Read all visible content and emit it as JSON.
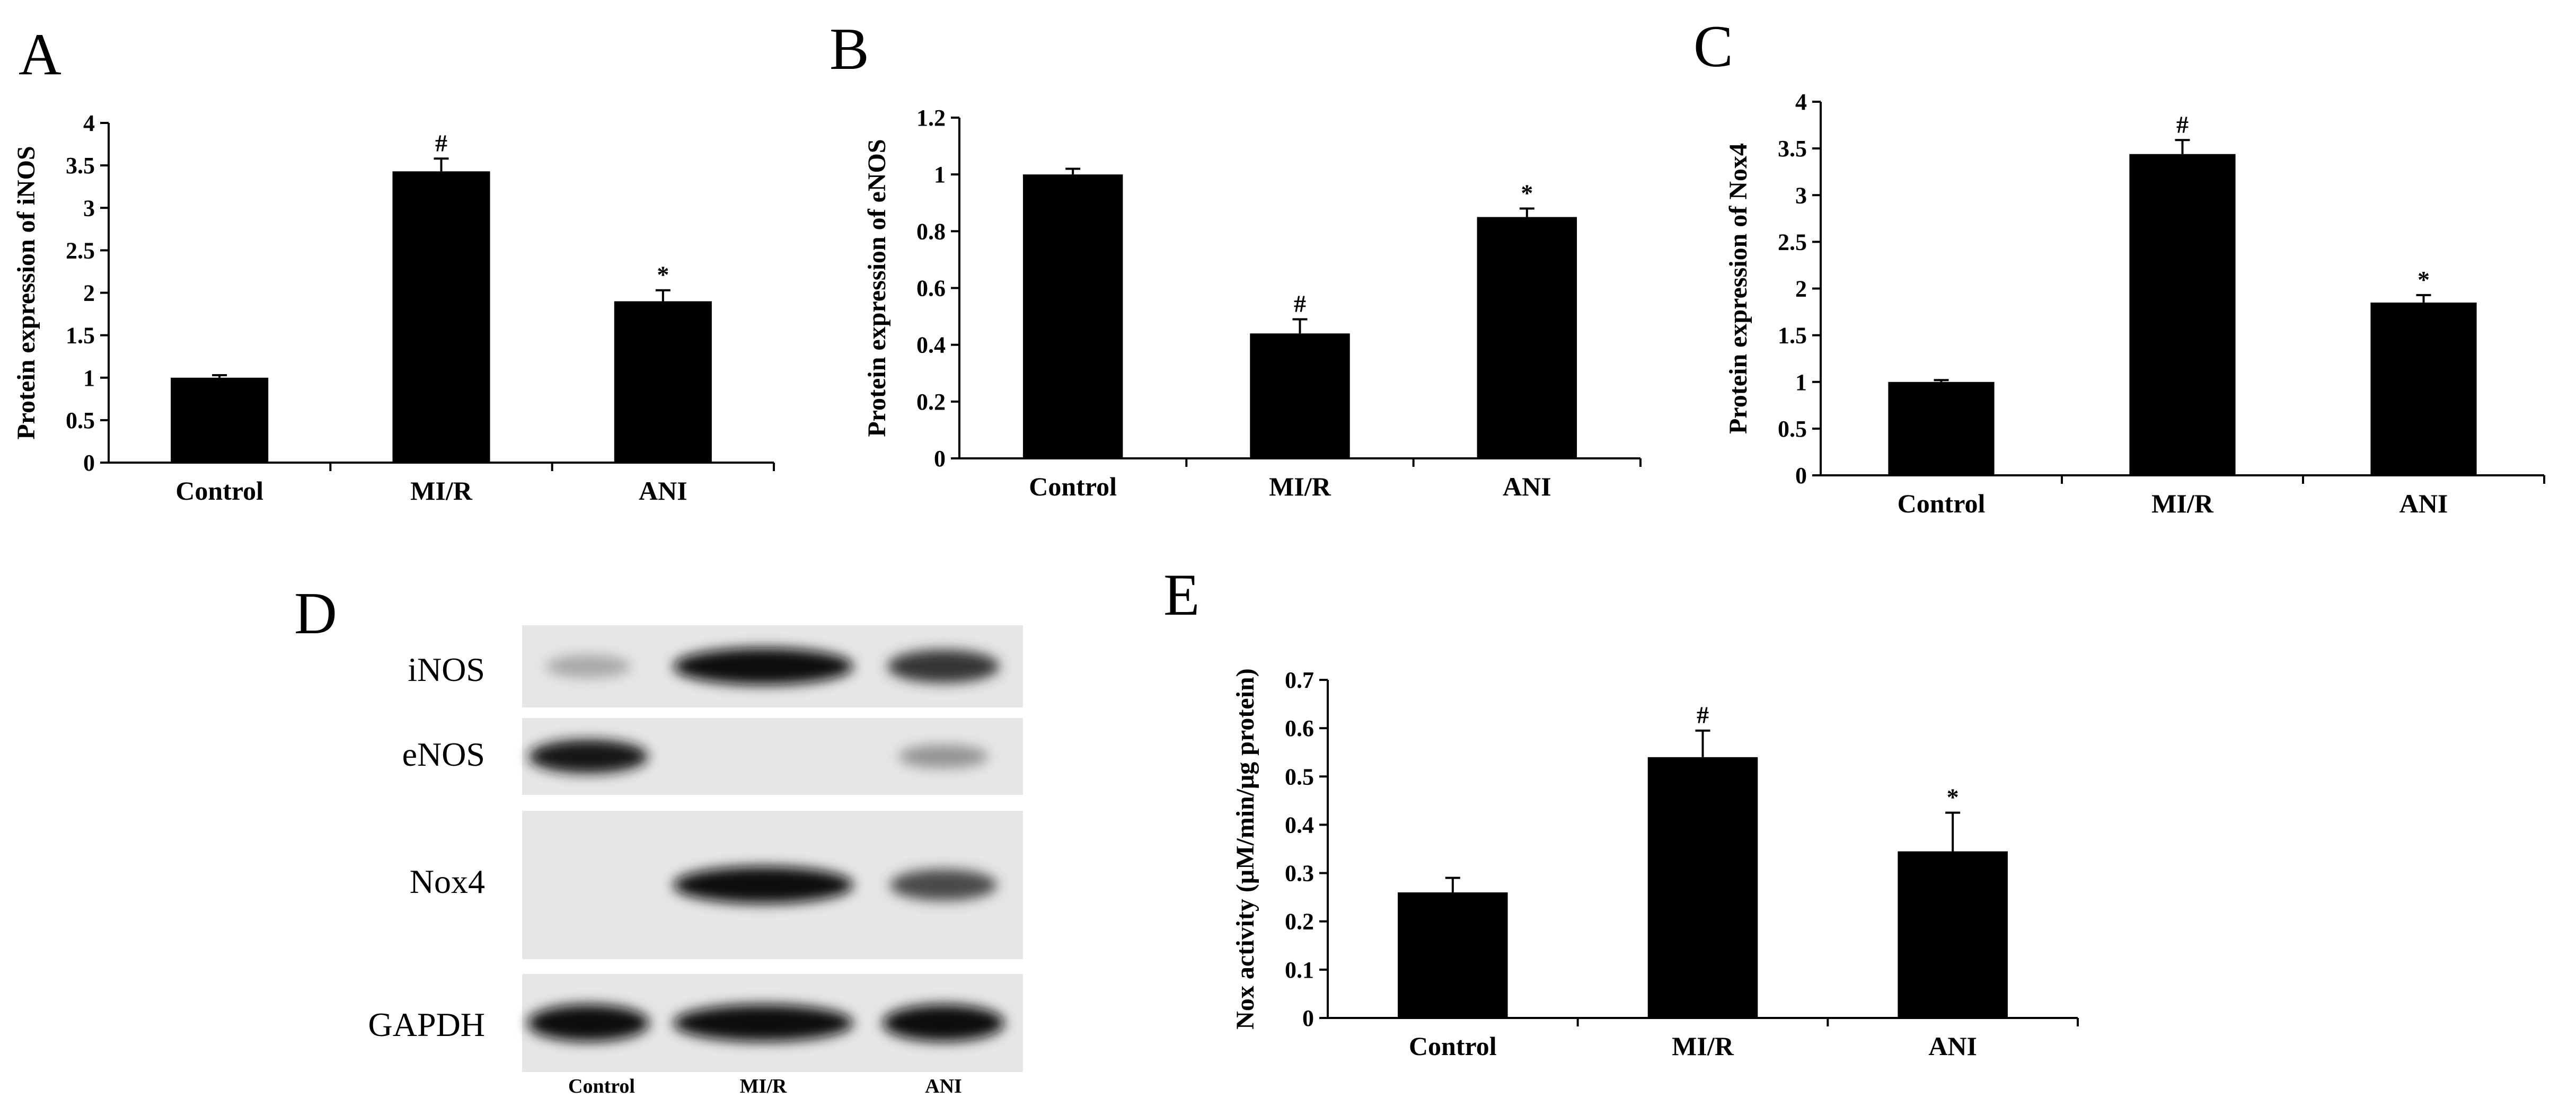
{
  "panels": {
    "A": "A",
    "B": "B",
    "C": "C",
    "D": "D",
    "E": "E"
  },
  "chart_data": [
    {
      "id": "A",
      "type": "bar",
      "categories": [
        "Control",
        "MI/R",
        "ANI"
      ],
      "values": [
        1.0,
        3.43,
        1.9
      ],
      "errors": [
        0.03,
        0.15,
        0.13
      ],
      "markers": [
        "",
        "#",
        "*"
      ],
      "ylabel": "Protein expression of iNOS",
      "ylim": [
        0,
        4
      ],
      "yticks": [
        "0",
        "0.5",
        "1",
        "1.5",
        "2",
        "2.5",
        "3",
        "3.5",
        "4"
      ],
      "grid": false
    },
    {
      "id": "B",
      "type": "bar",
      "categories": [
        "Control",
        "MI/R",
        "ANI"
      ],
      "values": [
        1.0,
        0.44,
        0.85
      ],
      "errors": [
        0.02,
        0.05,
        0.03
      ],
      "markers": [
        "",
        "#",
        "*"
      ],
      "ylabel": "Protein expression of eNOS",
      "ylim": [
        0,
        1.2
      ],
      "yticks": [
        "0",
        "0.2",
        "0.4",
        "0.6",
        "0.8",
        "1",
        "1.2"
      ],
      "grid": false
    },
    {
      "id": "C",
      "type": "bar",
      "categories": [
        "Control",
        "MI/R",
        "ANI"
      ],
      "values": [
        1.0,
        3.44,
        1.85
      ],
      "errors": [
        0.02,
        0.15,
        0.08
      ],
      "markers": [
        "",
        "#",
        "*"
      ],
      "ylabel": "Protein expression of Nox4",
      "ylim": [
        0,
        4
      ],
      "yticks": [
        "0",
        "0.5",
        "1",
        "1.5",
        "2",
        "2.5",
        "3",
        "3.5",
        "4"
      ],
      "grid": false
    },
    {
      "id": "E",
      "type": "bar",
      "categories": [
        "Control",
        "MI/R",
        "ANI"
      ],
      "values": [
        0.26,
        0.54,
        0.345
      ],
      "errors": [
        0.03,
        0.055,
        0.08
      ],
      "markers": [
        "",
        "#",
        "*"
      ],
      "ylabel": "Nox activity (μM/min/μg protein)",
      "ylim": [
        0,
        0.7
      ],
      "yticks": [
        "0",
        "0.1",
        "0.2",
        "0.3",
        "0.4",
        "0.5",
        "0.6",
        "0.7"
      ],
      "grid": false
    }
  ],
  "blot": {
    "rows": [
      "iNOS",
      "eNOS",
      "Nox4",
      "GAPDH"
    ],
    "lanes": [
      "Control",
      "MI/R",
      "ANI"
    ],
    "intensity": [
      [
        0.25,
        1.0,
        0.8
      ],
      [
        0.95,
        0.0,
        0.35
      ],
      [
        0.0,
        1.0,
        0.7
      ],
      [
        1.0,
        1.0,
        1.0
      ]
    ]
  }
}
